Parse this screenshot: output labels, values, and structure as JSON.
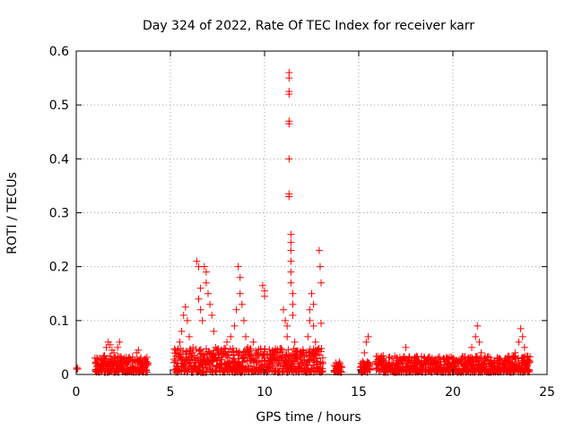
{
  "chart_data": {
    "type": "scatter",
    "title": "Day 324 of 2022, Rate Of TEC Index for receiver karr",
    "xlabel": "GPS time / hours",
    "ylabel": "ROTI / TECUs",
    "xlim": [
      0,
      25
    ],
    "ylim": [
      0,
      0.6
    ],
    "xticks": [
      "0",
      "5",
      "10",
      "15",
      "20",
      "25"
    ],
    "yticks": [
      "0",
      "0.1",
      "0.2",
      "0.3",
      "0.4",
      "0.5",
      "0.6"
    ],
    "grid": true,
    "marker": "plus",
    "color": "#ff0000",
    "series": [
      {
        "points": [
          [
            0.02,
            0.01
          ],
          [
            0.05,
            0.012
          ],
          [
            0.08,
            0.01
          ],
          [
            1.1,
            0.015
          ],
          [
            1.3,
            0.02
          ],
          [
            1.5,
            0.035
          ],
          [
            1.6,
            0.05
          ],
          [
            1.7,
            0.06
          ],
          [
            1.8,
            0.055
          ],
          [
            1.9,
            0.045
          ],
          [
            2.0,
            0.04
          ],
          [
            2.2,
            0.05
          ],
          [
            2.3,
            0.06
          ],
          [
            2.4,
            0.03
          ],
          [
            2.6,
            0.02
          ],
          [
            2.8,
            0.03
          ],
          [
            3.0,
            0.025
          ],
          [
            3.2,
            0.04
          ],
          [
            3.3,
            0.045
          ],
          [
            3.5,
            0.02
          ],
          [
            3.7,
            0.015
          ],
          [
            5.3,
            0.04
          ],
          [
            5.5,
            0.06
          ],
          [
            5.6,
            0.08
          ],
          [
            5.7,
            0.11
          ],
          [
            5.8,
            0.125
          ],
          [
            5.9,
            0.1
          ],
          [
            6.0,
            0.07
          ],
          [
            6.2,
            0.05
          ],
          [
            6.4,
            0.21
          ],
          [
            6.5,
            0.2
          ],
          [
            6.6,
            0.16
          ],
          [
            6.5,
            0.14
          ],
          [
            6.6,
            0.12
          ],
          [
            6.7,
            0.1
          ],
          [
            6.8,
            0.2
          ],
          [
            6.9,
            0.19
          ],
          [
            6.9,
            0.17
          ],
          [
            7.0,
            0.15
          ],
          [
            7.1,
            0.13
          ],
          [
            7.2,
            0.11
          ],
          [
            7.3,
            0.08
          ],
          [
            7.4,
            0.05
          ],
          [
            7.8,
            0.04
          ],
          [
            8.0,
            0.06
          ],
          [
            8.2,
            0.07
          ],
          [
            8.4,
            0.09
          ],
          [
            8.5,
            0.12
          ],
          [
            8.6,
            0.2
          ],
          [
            8.7,
            0.18
          ],
          [
            8.7,
            0.15
          ],
          [
            8.8,
            0.13
          ],
          [
            8.9,
            0.1
          ],
          [
            9.0,
            0.07
          ],
          [
            9.1,
            0.05
          ],
          [
            9.4,
            0.06
          ],
          [
            9.6,
            0.04
          ],
          [
            9.9,
            0.165
          ],
          [
            10.0,
            0.155
          ],
          [
            10.0,
            0.145
          ],
          [
            10.4,
            0.03
          ],
          [
            10.7,
            0.04
          ],
          [
            11.0,
            0.12
          ],
          [
            11.1,
            0.1
          ],
          [
            11.2,
            0.09
          ],
          [
            11.2,
            0.07
          ],
          [
            11.3,
            0.56
          ],
          [
            11.3,
            0.55
          ],
          [
            11.3,
            0.525
          ],
          [
            11.3,
            0.52
          ],
          [
            11.3,
            0.47
          ],
          [
            11.3,
            0.465
          ],
          [
            11.3,
            0.4
          ],
          [
            11.3,
            0.335
          ],
          [
            11.3,
            0.33
          ],
          [
            11.4,
            0.26
          ],
          [
            11.4,
            0.245
          ],
          [
            11.4,
            0.23
          ],
          [
            11.4,
            0.21
          ],
          [
            11.4,
            0.19
          ],
          [
            11.4,
            0.17
          ],
          [
            11.5,
            0.15
          ],
          [
            11.5,
            0.13
          ],
          [
            11.5,
            0.11
          ],
          [
            11.6,
            0.06
          ],
          [
            12.2,
            0.04
          ],
          [
            12.3,
            0.07
          ],
          [
            12.4,
            0.1
          ],
          [
            12.4,
            0.12
          ],
          [
            12.5,
            0.15
          ],
          [
            12.6,
            0.13
          ],
          [
            12.6,
            0.09
          ],
          [
            12.7,
            0.06
          ],
          [
            12.9,
            0.23
          ],
          [
            12.95,
            0.2
          ],
          [
            13.0,
            0.17
          ],
          [
            13.0,
            0.095
          ],
          [
            13.1,
            0.02
          ],
          [
            13.8,
            0.01
          ],
          [
            13.9,
            0.015
          ],
          [
            14.0,
            0.02
          ],
          [
            15.2,
            0.02
          ],
          [
            15.3,
            0.04
          ],
          [
            15.4,
            0.06
          ],
          [
            15.5,
            0.07
          ],
          [
            15.6,
            0.01
          ],
          [
            16.0,
            0.02
          ],
          [
            16.3,
            0.035
          ],
          [
            16.6,
            0.02
          ],
          [
            17.0,
            0.03
          ],
          [
            17.5,
            0.05
          ],
          [
            18.0,
            0.02
          ],
          [
            18.5,
            0.03
          ],
          [
            19.0,
            0.025
          ],
          [
            19.5,
            0.03
          ],
          [
            20.0,
            0.02
          ],
          [
            20.5,
            0.03
          ],
          [
            21.0,
            0.05
          ],
          [
            21.2,
            0.07
          ],
          [
            21.3,
            0.09
          ],
          [
            21.4,
            0.06
          ],
          [
            21.5,
            0.04
          ],
          [
            22.0,
            0.02
          ],
          [
            22.5,
            0.03
          ],
          [
            23.0,
            0.02
          ],
          [
            23.3,
            0.04
          ],
          [
            23.5,
            0.06
          ],
          [
            23.6,
            0.085
          ],
          [
            23.7,
            0.07
          ],
          [
            23.8,
            0.05
          ],
          [
            24.0,
            0.02
          ]
        ],
        "bands": [
          {
            "x": [
              1.0,
              3.8
            ],
            "ymax": 0.03
          },
          {
            "x": [
              5.2,
              13.1
            ],
            "ymax": 0.045
          },
          {
            "x": [
              13.7,
              14.1
            ],
            "ymax": 0.02
          },
          {
            "x": [
              15.1,
              15.6
            ],
            "ymax": 0.02
          },
          {
            "x": [
              15.9,
              24.1
            ],
            "ymax": 0.03
          }
        ]
      }
    ]
  }
}
